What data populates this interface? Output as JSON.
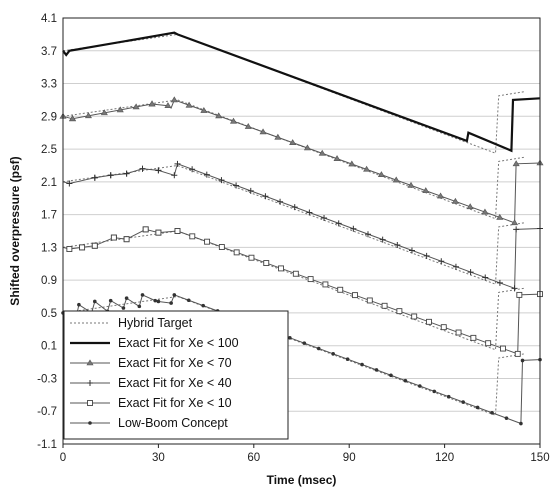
{
  "chart_data": {
    "type": "line",
    "title": "",
    "xlabel": "Time (msec)",
    "ylabel": "Shifted overpressure (psf)",
    "xlim": [
      0,
      150
    ],
    "ylim": [
      -1.1,
      4.1
    ],
    "x_ticks": [
      "0",
      "30",
      "60",
      "90",
      "120",
      "150"
    ],
    "y_ticks": [
      "-1.1",
      "-0.7",
      "-0.3",
      "0.1",
      "0.5",
      "0.9",
      "1.3",
      "1.7",
      "2.1",
      "2.5",
      "2.9",
      "3.3",
      "3.7",
      "4.1"
    ],
    "grid": "horizontal",
    "legend_position": "bottom-left",
    "series": [
      {
        "name": "Hybrid Target",
        "style": "dotted",
        "offsets": [
          3.2,
          2.4,
          1.6,
          0.8,
          0.0
        ],
        "x": [
          0,
          36,
          136,
          137,
          145
        ],
        "y": [
          0.5,
          0.7,
          -0.75,
          -0.05,
          0.0
        ]
      },
      {
        "name": "Exact Fit for Xe < 100",
        "style": "thick",
        "offset": 3.2,
        "x": [
          0,
          1,
          2,
          35,
          36,
          127,
          127.5,
          141,
          141.5,
          150
        ],
        "y": [
          0.5,
          0.45,
          0.5,
          0.72,
          0.7,
          -0.6,
          -0.5,
          -0.72,
          -0.1,
          -0.08
        ]
      },
      {
        "name": "Exact Fit for Xe < 70",
        "marker": "triangle",
        "offset": 2.4,
        "x": [
          0,
          3,
          28,
          33,
          34,
          35,
          142,
          142.5,
          150
        ],
        "y": [
          0.5,
          0.47,
          0.65,
          0.63,
          0.6,
          0.7,
          -0.8,
          -0.08,
          -0.07
        ]
      },
      {
        "name": "Exact Fit for Xe < 40",
        "marker": "plus",
        "offset": 1.6,
        "x": [
          0,
          2,
          10,
          15,
          20,
          25,
          30,
          35,
          36,
          142,
          142.5,
          150
        ],
        "y": [
          0.5,
          0.48,
          0.55,
          0.58,
          0.6,
          0.66,
          0.64,
          0.58,
          0.72,
          -0.8,
          -0.08,
          -0.07
        ]
      },
      {
        "name": "Exact Fit for Xe < 10",
        "marker": "square",
        "offset": 0.8,
        "x": [
          0,
          2,
          6,
          10,
          16,
          20,
          26,
          30,
          36,
          143,
          143.5,
          150
        ],
        "y": [
          0.5,
          0.48,
          0.5,
          0.52,
          0.62,
          0.6,
          0.72,
          0.68,
          0.7,
          -0.8,
          -0.08,
          -0.07
        ]
      },
      {
        "name": "Low-Boom Concept",
        "marker": "dot",
        "offset": 0.0,
        "x": [
          0,
          4,
          5,
          9,
          10,
          14,
          15,
          19,
          20,
          24,
          25,
          29,
          30,
          34,
          35,
          144,
          144.5,
          150
        ],
        "y": [
          0.5,
          0.42,
          0.6,
          0.5,
          0.64,
          0.52,
          0.65,
          0.56,
          0.68,
          0.58,
          0.72,
          0.65,
          0.64,
          0.62,
          0.72,
          -0.85,
          -0.08,
          -0.07
        ]
      }
    ]
  }
}
